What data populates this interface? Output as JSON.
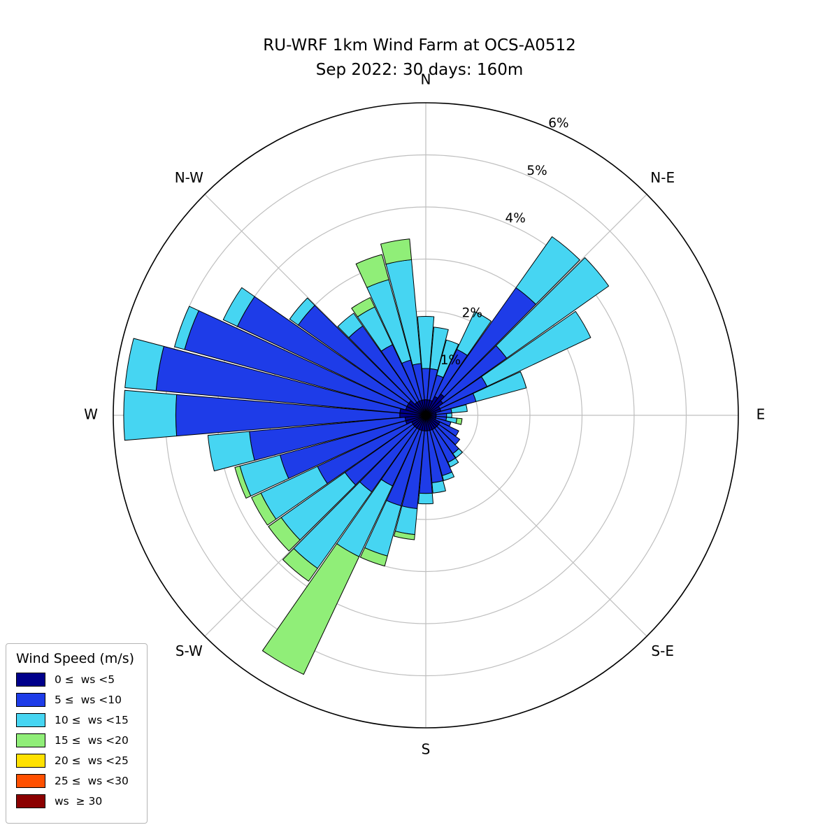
{
  "title": {
    "line1": "RU-WRF 1km Wind Farm at OCS-A0512",
    "line2": "Sep 2022: 30 days: 160m"
  },
  "legend": {
    "title": "Wind Speed (m/s)"
  },
  "chart_data": {
    "type": "windrose-stacked-polar-bar",
    "units": "percent of time",
    "sector_width_deg": 10,
    "directions_deg": [
      0,
      10,
      20,
      30,
      40,
      50,
      60,
      70,
      80,
      90,
      100,
      110,
      120,
      130,
      140,
      150,
      160,
      170,
      180,
      190,
      200,
      210,
      220,
      230,
      240,
      250,
      260,
      270,
      280,
      290,
      300,
      310,
      320,
      330,
      340,
      350
    ],
    "rings_pct": [
      1,
      2,
      3,
      4,
      5,
      6
    ],
    "ring_labels_visible": [
      {
        "label": "1%",
        "r": 1
      },
      {
        "label": "2%",
        "r": 2
      },
      {
        "label": "4%",
        "r": 4
      },
      {
        "label": "5%",
        "r": 5
      },
      {
        "label": "6%",
        "r": 6
      }
    ],
    "ring_label_angle_deg": 24.5,
    "rmax_pct": 6,
    "compass": [
      {
        "label": "N",
        "deg": 0
      },
      {
        "label": "N-E",
        "deg": 45
      },
      {
        "label": "E",
        "deg": 90
      },
      {
        "label": "S-E",
        "deg": 135
      },
      {
        "label": "S",
        "deg": 180
      },
      {
        "label": "S-W",
        "deg": 225
      },
      {
        "label": "W",
        "deg": 270
      },
      {
        "label": "N-W",
        "deg": 315
      }
    ],
    "series": [
      {
        "name": "0 ≤  ws <5",
        "color": "#00008B",
        "values": [
          0.3,
          0.3,
          0.3,
          0.4,
          0.5,
          0.4,
          0.3,
          0.3,
          0.2,
          0.2,
          0.2,
          0.2,
          0.3,
          0.3,
          0.3,
          0.3,
          0.3,
          0.3,
          0.3,
          0.3,
          0.3,
          0.3,
          0.3,
          0.3,
          0.3,
          0.4,
          0.4,
          0.5,
          0.5,
          0.4,
          0.4,
          0.4,
          0.3,
          0.3,
          0.3,
          0.3
        ]
      },
      {
        "name": "5 ≤  ws <10",
        "color": "#1E3CE8",
        "values": [
          0.6,
          0.6,
          0.5,
          1.0,
          2.5,
          1.5,
          1.0,
          0.7,
          0.3,
          0.2,
          0.2,
          0.3,
          0.4,
          0.5,
          0.6,
          0.7,
          0.9,
          1.0,
          1.2,
          1.5,
          1.5,
          1.2,
          1.5,
          1.6,
          2.0,
          2.5,
          3.0,
          4.3,
          4.7,
          4.4,
          3.6,
          2.6,
          1.8,
          1.2,
          0.8,
          0.7
        ]
      },
      {
        "name": "10 ≤  ws <15",
        "color": "#46D5F2",
        "values": [
          1.0,
          0.8,
          0.7,
          0.8,
          1.2,
          2.4,
          2.2,
          1.0,
          0.3,
          0.1,
          0.2,
          0.0,
          0.0,
          0.0,
          0.1,
          0.1,
          0.1,
          0.2,
          0.2,
          0.5,
          1.0,
          1.5,
          1.8,
          1.5,
          1.2,
          0.8,
          0.8,
          1.0,
          0.6,
          0.2,
          0.3,
          0.2,
          0.3,
          0.8,
          1.6,
          2.0
        ]
      },
      {
        "name": "15 ≤  ws <20",
        "color": "#90EE78",
        "values": [
          0,
          0,
          0,
          0,
          0,
          0,
          0,
          0,
          0,
          0,
          0.1,
          0,
          0,
          0,
          0,
          0,
          0,
          0,
          0,
          0.1,
          0.2,
          2.5,
          0.3,
          0.3,
          0.2,
          0.1,
          0,
          0,
          0,
          0,
          0,
          0,
          0,
          0.2,
          0.5,
          0.4
        ]
      },
      {
        "name": "20 ≤  ws <25",
        "color": "#FFE100",
        "values": [
          0,
          0,
          0,
          0,
          0,
          0,
          0,
          0,
          0,
          0,
          0,
          0,
          0,
          0,
          0,
          0,
          0,
          0,
          0,
          0,
          0,
          0,
          0,
          0,
          0,
          0,
          0,
          0,
          0,
          0,
          0,
          0,
          0,
          0,
          0,
          0
        ]
      },
      {
        "name": "25 ≤  ws <30",
        "color": "#FF5000",
        "values": [
          0,
          0,
          0,
          0,
          0,
          0,
          0,
          0,
          0,
          0,
          0,
          0,
          0,
          0,
          0,
          0,
          0,
          0,
          0,
          0,
          0,
          0,
          0,
          0,
          0,
          0,
          0,
          0,
          0,
          0,
          0,
          0,
          0,
          0,
          0,
          0
        ]
      },
      {
        "name": "ws  ≥ 30",
        "color": "#8B0000",
        "values": [
          0,
          0,
          0,
          0,
          0,
          0,
          0,
          0,
          0,
          0,
          0,
          0,
          0,
          0,
          0,
          0,
          0,
          0,
          0,
          0,
          0,
          0,
          0,
          0,
          0,
          0,
          0,
          0,
          0,
          0,
          0,
          0,
          0,
          0,
          0,
          0
        ]
      }
    ]
  }
}
